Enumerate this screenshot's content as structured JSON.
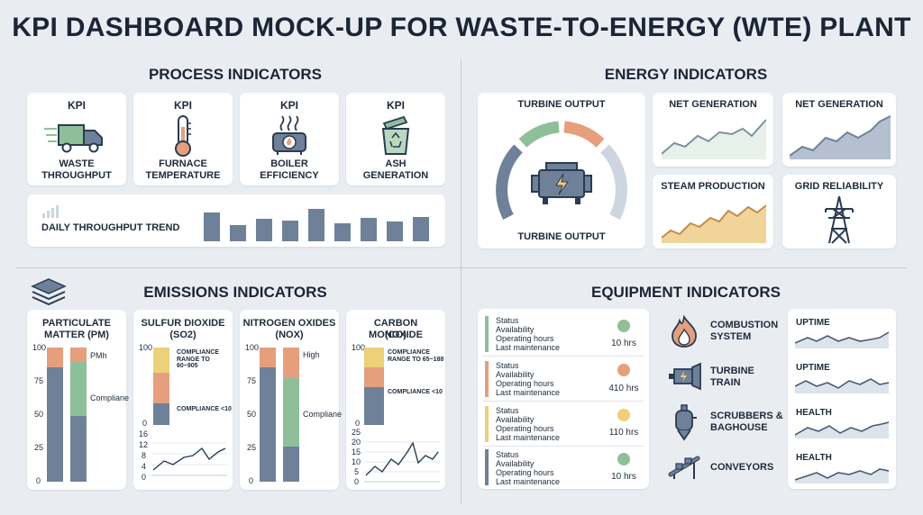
{
  "title": "KPI DASHBOARD MOCK-UP FOR WASTE-TO-ENERGY (WTE) PLANT",
  "colors": {
    "green": "#8fbf99",
    "orange": "#e59f7c",
    "yellow": "#ecd07a",
    "slate": "#6f8199",
    "light": "#cdd5df",
    "bg": "#e9edf2"
  },
  "process": {
    "title": "PROCESS INDICATORS",
    "kpis": [
      {
        "tag": "KPI",
        "icon": "truck-icon",
        "name1": "WASTE",
        "name2": "THROUGHPUT"
      },
      {
        "tag": "KPI",
        "icon": "thermometer-icon",
        "name1": "FURNACE",
        "name2": "TEMPERATURE"
      },
      {
        "tag": "KPI",
        "icon": "boiler-icon",
        "name1": "BOILER",
        "name2": "EFFICIENCY"
      },
      {
        "tag": "KPI",
        "icon": "recycle-bin-icon",
        "name1": "ASH",
        "name2": "GENERATION"
      }
    ],
    "trend": {
      "label": "DAILY THROUGHPUT TREND",
      "values": [
        35,
        20,
        28,
        25,
        40,
        22,
        29,
        24,
        30
      ]
    }
  },
  "energy": {
    "title": "ENERGY INDICATORS",
    "turbine": {
      "top": "TURBINE OUTPUT",
      "bottom": "TURBINE OUTPUT"
    },
    "cards": [
      {
        "label": "NET GENERATION"
      },
      {
        "label": "NET GENERATION"
      },
      {
        "label": "STEAM PRODUCTION"
      },
      {
        "label": "GRID RELIABILITY"
      }
    ]
  },
  "emissions": {
    "title": "EMISSIONS INDICATORS",
    "cols": [
      {
        "name1": "PARTICULATE",
        "name2": "MATTER (PM)",
        "ticks": [
          "100",
          "75",
          "50",
          "25",
          "0"
        ],
        "ann1": "PMh",
        "ann2": "Compliane"
      },
      {
        "name1": "SULFUR DIOXIDE",
        "name2": "(SO2)",
        "ticks": [
          "100",
          "0"
        ],
        "ann1": "COMPLIANCE",
        "ann1b": "RANGE TO 60~905",
        "ann2": "COMPLIANCE <10",
        "ticks2": [
          "16",
          "12",
          "8",
          "4",
          "0"
        ]
      },
      {
        "name1": "NITROGEN OXIDES",
        "name2": "(NOX)",
        "ticks": [
          "100",
          "75",
          "50",
          "25",
          "0"
        ],
        "ann1": "High",
        "ann2": "Compliane"
      },
      {
        "name1": "CARBON MONOXIDE",
        "name2": "(CO)",
        "ticks": [
          "100",
          "0"
        ],
        "ann1": "COMPLIANCE",
        "ann1b": "RANGE TO 65~188",
        "ann2": "COMPLIANCE <10",
        "ticks2": [
          "25",
          "20",
          "15",
          "10",
          "5",
          "0"
        ]
      }
    ]
  },
  "equipment": {
    "title": "EQUIPMENT INDICATORS",
    "rows": [
      {
        "l1": "Status",
        "l2": "Availability",
        "l3": "Operating hours",
        "l4": "Last maintenance",
        "hours": "10 hrs"
      },
      {
        "l1": "Status",
        "l2": "Availability",
        "l3": "Operating hours",
        "l4": "Last maintenance",
        "hours": "410 hrs"
      },
      {
        "l1": "Status",
        "l2": "Availability",
        "l3": "Operating hours",
        "l4": "Last maintenance",
        "hours": "110 hrs"
      },
      {
        "l1": "Status",
        "l2": "Availability",
        "l3": "Operating hours",
        "l4": "Last maintenance",
        "hours": "10 hrs"
      }
    ],
    "systems": [
      {
        "icon": "flame-icon",
        "l1": "COMBUSTION",
        "l2": "SYSTEM"
      },
      {
        "icon": "turbine-icon",
        "l1": "TURBINE",
        "l2": "TRAIN"
      },
      {
        "icon": "scrubber-icon",
        "l1": "SCRUBBERS &",
        "l2": "BAGHOUSE"
      },
      {
        "icon": "conveyor-icon",
        "l1": "CONVEYORS",
        "l2": ""
      }
    ],
    "metrics": [
      {
        "label": "UPTIME"
      },
      {
        "label": "UPTIME"
      },
      {
        "label": "HEALTH"
      },
      {
        "label": "HEALTH"
      }
    ]
  }
}
